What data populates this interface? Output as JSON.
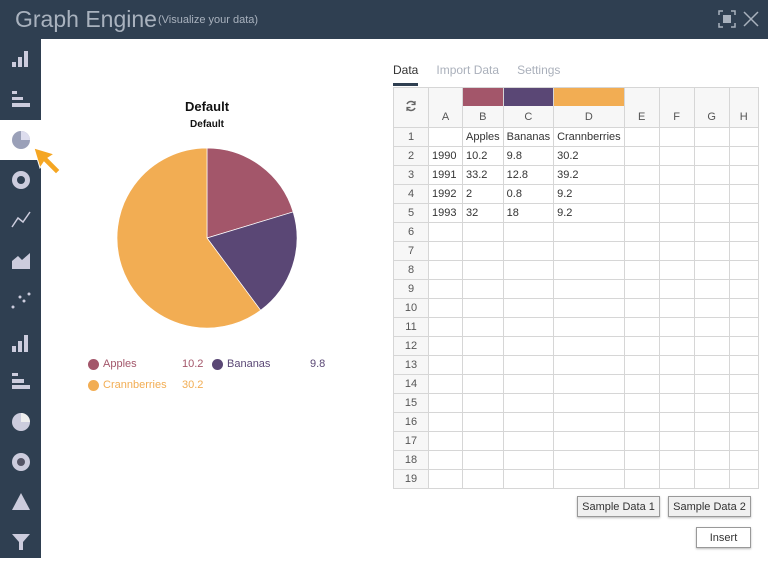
{
  "app": {
    "title": "Graph Engine",
    "subtitle": "(Visualize your data)"
  },
  "sidebar": {
    "items": [
      "bar-chart-icon",
      "horizontal-bar-icon",
      "pie-chart-icon",
      "donut-icon",
      "line-chart-icon",
      "area-chart-icon",
      "scatter-icon",
      "bar-chart-3d-icon",
      "horizontal-bar-3d-icon",
      "pie-3d-icon",
      "donut-3d-icon",
      "pyramid-icon",
      "funnel-icon"
    ],
    "active": "pie-chart-icon"
  },
  "tabs": [
    {
      "label": "Data",
      "active": true
    },
    {
      "label": "Import Data"
    },
    {
      "label": "Settings"
    }
  ],
  "grid": {
    "columns": [
      "A",
      "B",
      "C",
      "D",
      "E",
      "F",
      "G",
      "H"
    ],
    "column_colors": {
      "B": "#a3566a",
      "C": "#5a4775",
      "D": "#f2ad53"
    },
    "rows": [
      [
        "",
        "Apples",
        "Bananas",
        "Crannberries",
        "",
        "",
        "",
        ""
      ],
      [
        "1990",
        "10.2",
        "9.8",
        "30.2",
        "",
        "",
        "",
        ""
      ],
      [
        "1991",
        "33.2",
        "12.8",
        "39.2",
        "",
        "",
        "",
        ""
      ],
      [
        "1992",
        "2",
        "0.8",
        "9.2",
        "",
        "",
        "",
        ""
      ],
      [
        "1993",
        "32",
        "18",
        "9.2",
        "",
        "",
        "",
        ""
      ]
    ],
    "total_rows": 19
  },
  "buttons": {
    "sample1": "Sample Data 1",
    "sample2": "Sample Data 2",
    "insert": "Insert"
  },
  "chart_data": {
    "type": "pie",
    "title": "Default",
    "subtitle": "Default",
    "categories": [
      "Apples",
      "Bananas",
      "Crannberries"
    ],
    "values": [
      10.2,
      9.8,
      30.2
    ],
    "colors": [
      "#a3566a",
      "#5a4775",
      "#f2ad53"
    ],
    "legend_labels": [
      "10.2",
      "9.8",
      "30.2"
    ],
    "legend": "bottom"
  }
}
